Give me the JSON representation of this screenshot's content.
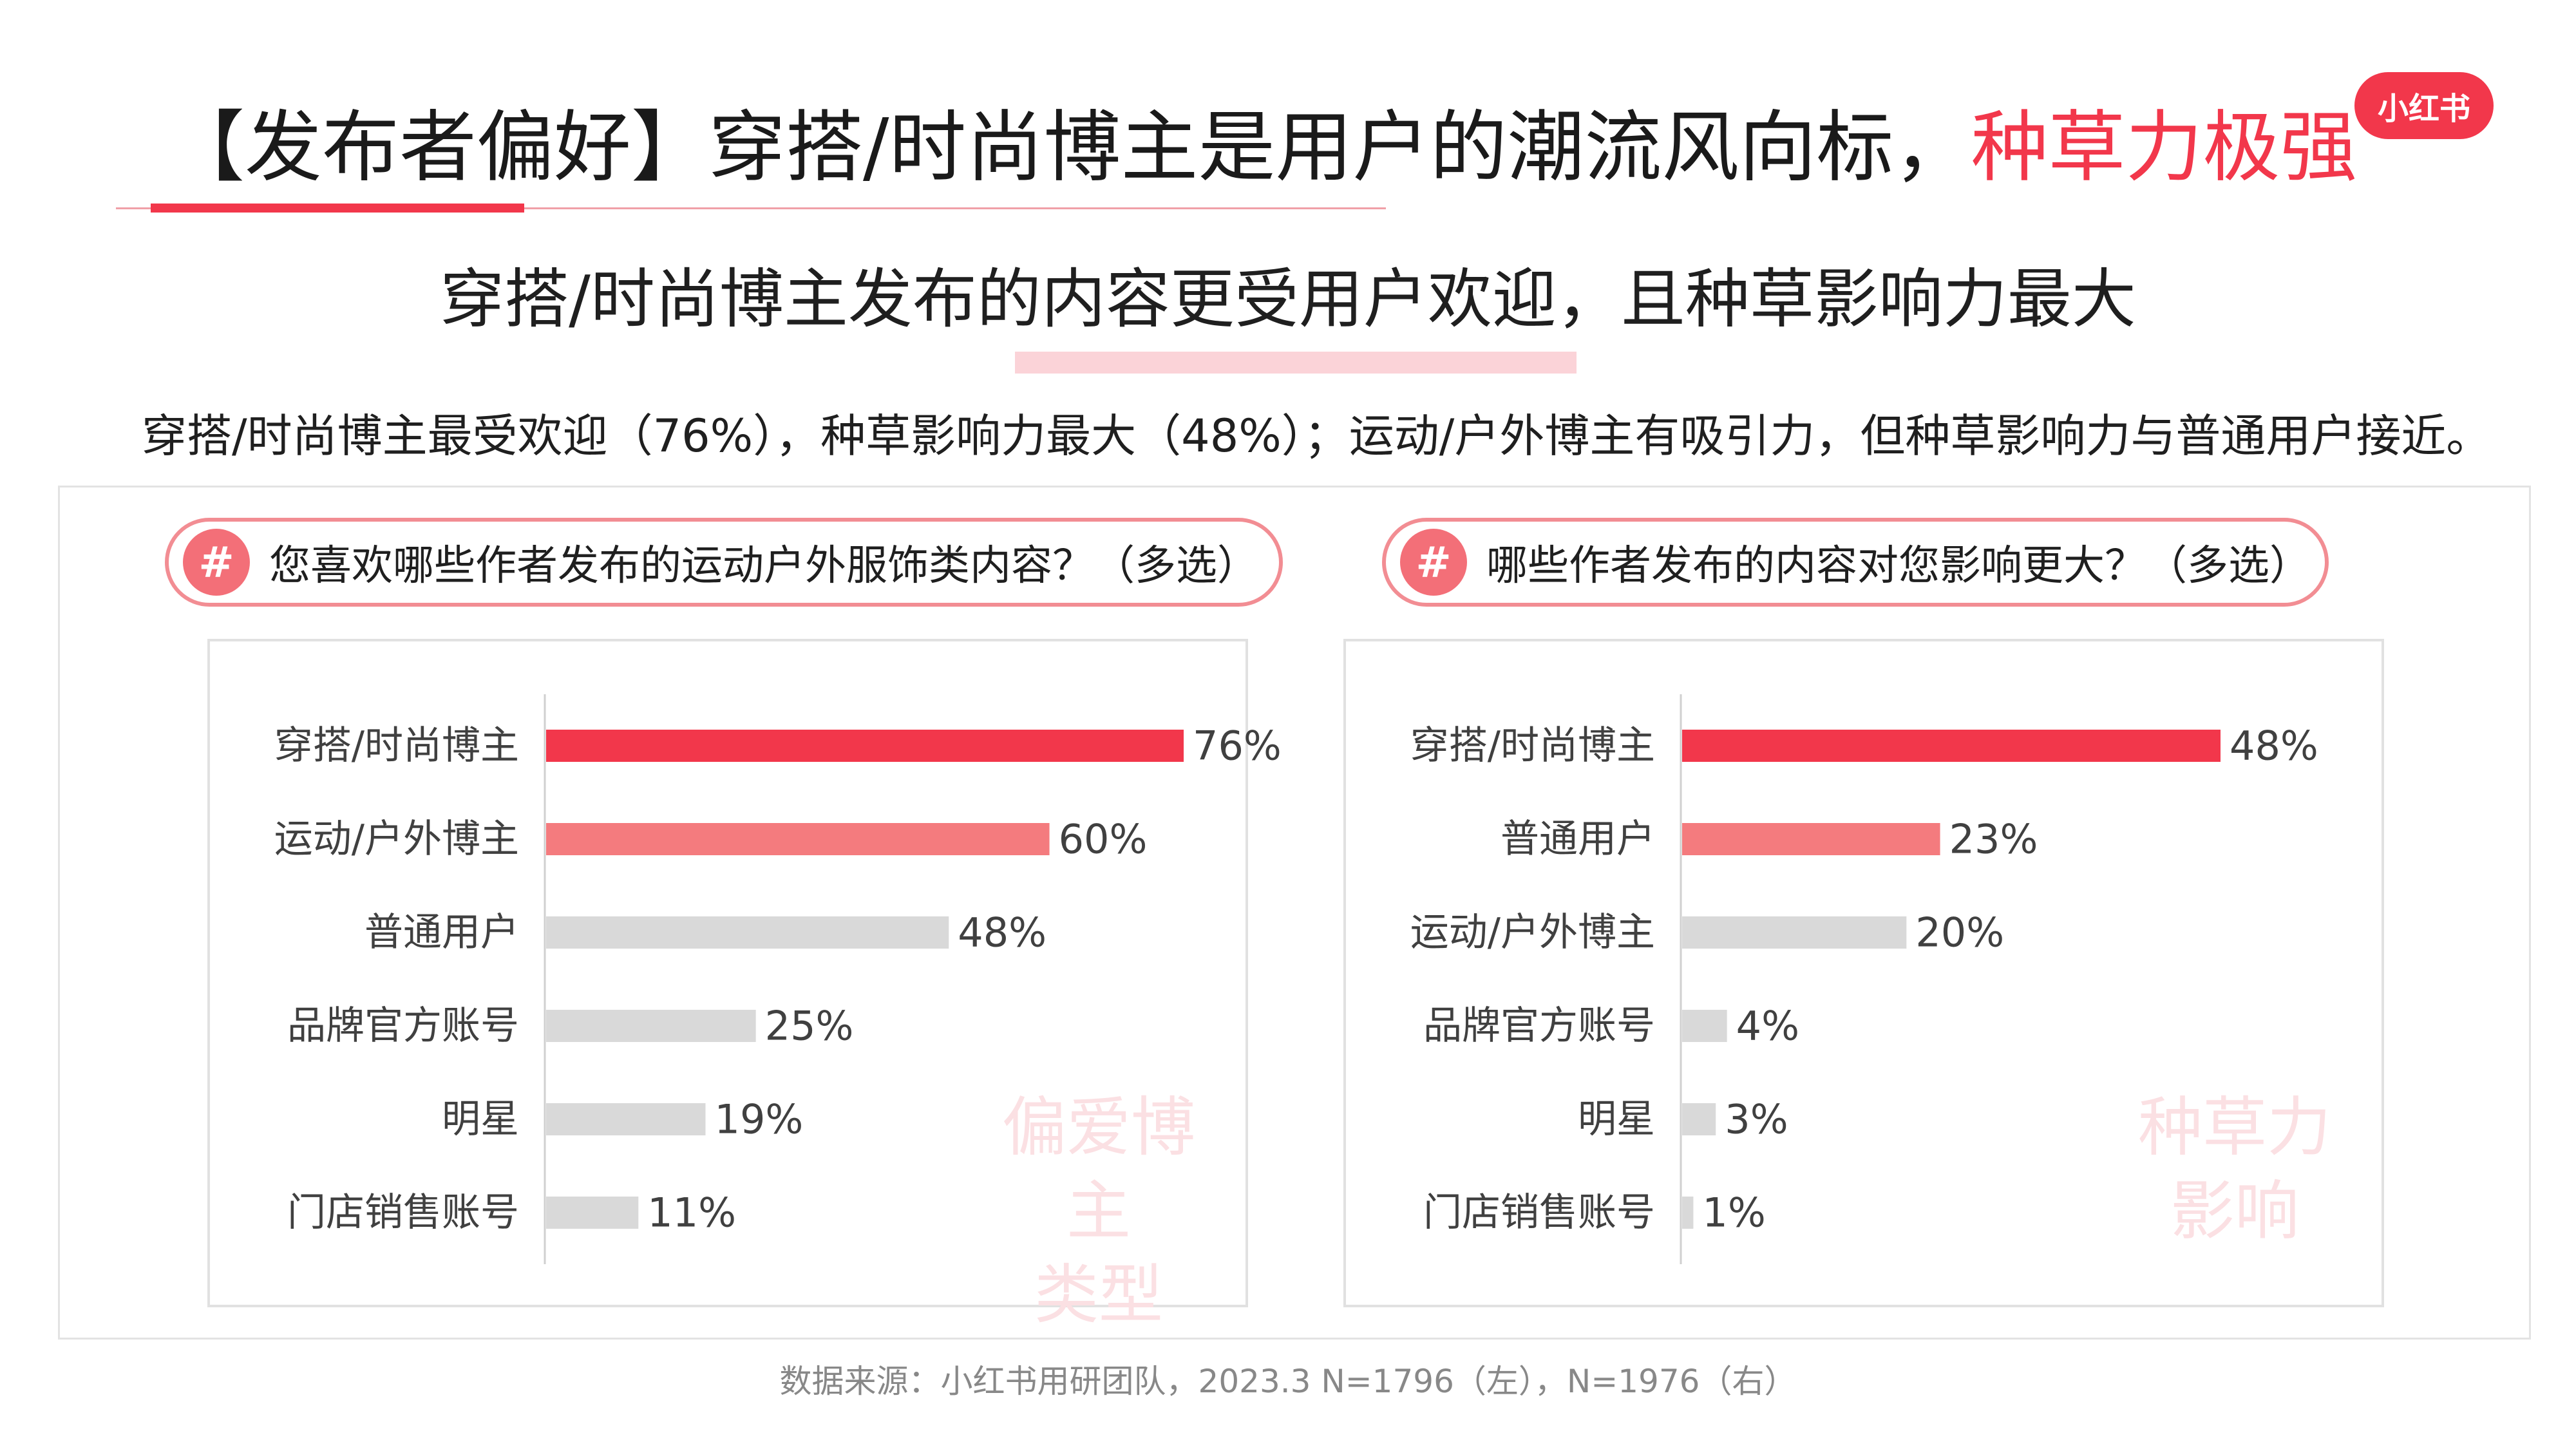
{
  "header": {
    "title_prefix": "【发布者偏好】穿搭/时尚博主是用户的潮流风向标，",
    "title_accent": "种草力极强",
    "logo_text": "小红书",
    "subtitle": "穿搭/时尚博主发布的内容更受用户欢迎，且种草影响力最大",
    "summary": "穿搭/时尚博主最受欢迎（76%），种草影响力最大（48%）；运动/户外博主有吸引力，但种草影响力与普通用户接近。"
  },
  "colors": {
    "accent": "#f2374b",
    "secondary": "#f47b7e",
    "neutral": "#d9d9d9"
  },
  "panels": [
    {
      "question": "您喜欢哪些作者发布的运动户外服饰类内容？（多选）",
      "hash_icon": "#",
      "watermark_lines": [
        "偏爱博主",
        "类型"
      ]
    },
    {
      "question": "哪些作者发布的内容对您影响更大？（多选）",
      "hash_icon": "#",
      "watermark_lines": [
        "种草力",
        "影响"
      ]
    }
  ],
  "chart_data": [
    {
      "type": "bar",
      "orientation": "horizontal",
      "categories": [
        "穿搭/时尚博主",
        "运动/户外博主",
        "普通用户",
        "品牌官方账号",
        "明星",
        "门店销售账号"
      ],
      "values": [
        76,
        60,
        48,
        25,
        19,
        11
      ],
      "value_labels": [
        "76%",
        "60%",
        "48%",
        "25%",
        "19%",
        "11%"
      ],
      "unit": "%",
      "bar_colors": [
        "#f2374b",
        "#f47b7e",
        "#d9d9d9",
        "#d9d9d9",
        "#d9d9d9",
        "#d9d9d9"
      ],
      "xlim": [
        0,
        76
      ]
    },
    {
      "type": "bar",
      "orientation": "horizontal",
      "categories": [
        "穿搭/时尚博主",
        "普通用户",
        "运动/户外博主",
        "品牌官方账号",
        "明星",
        "门店销售账号"
      ],
      "values": [
        48,
        23,
        20,
        4,
        3,
        1
      ],
      "value_labels": [
        "48%",
        "23%",
        "20%",
        "4%",
        "3%",
        "1%"
      ],
      "unit": "%",
      "bar_colors": [
        "#f2374b",
        "#f47b7e",
        "#d9d9d9",
        "#d9d9d9",
        "#d9d9d9",
        "#d9d9d9"
      ],
      "xlim": [
        0,
        48
      ]
    }
  ],
  "footnote": "数据来源：小红书用研团队，2023.3 N=1796（左），N=1976（右）"
}
